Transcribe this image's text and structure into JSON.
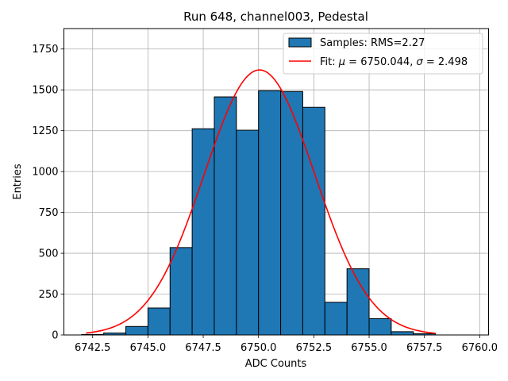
{
  "chart_data": {
    "type": "bar",
    "title": "Run 648, channel003, Pedestal",
    "xlabel": "ADC Counts",
    "ylabel": "Entries",
    "xlim": [
      6741.2,
      6760.4
    ],
    "ylim": [
      0,
      1875
    ],
    "grid": true,
    "legend_position": "top-right",
    "xticks": [
      6742.5,
      6745.0,
      6747.5,
      6750.0,
      6752.5,
      6755.0,
      6757.5,
      6760.0
    ],
    "xtick_labels": [
      "6742.5",
      "6745.0",
      "6747.5",
      "6750.0",
      "6752.5",
      "6755.0",
      "6757.5",
      "6760.0"
    ],
    "yticks": [
      0,
      250,
      500,
      750,
      1000,
      1250,
      1500,
      1750
    ],
    "ytick_labels": [
      "0",
      "250",
      "500",
      "750",
      "1000",
      "1250",
      "1500",
      "1750"
    ],
    "histogram": {
      "name": "Samples: RMS=2.27",
      "color": "#1f77b4",
      "edge_color": "#000000",
      "bin_edges": [
        6742.0,
        6743.0,
        6744.0,
        6745.0,
        6746.0,
        6747.0,
        6748.0,
        6749.0,
        6750.0,
        6751.0,
        6752.0,
        6753.0,
        6754.0,
        6755.0,
        6756.0,
        6757.0,
        6758.0
      ],
      "counts": [
        3,
        12,
        52,
        165,
        535,
        1262,
        1457,
        1253,
        1495,
        1490,
        1393,
        200,
        405,
        100,
        20,
        8
      ]
    },
    "fit": {
      "name": "Fit: μ = 6750.044, σ = 2.498",
      "legend_mu_symbol": "μ",
      "legend_sigma_symbol": "σ",
      "legend_prefix": "Fit: ",
      "legend_mu_value": " = 6750.044, ",
      "legend_sigma_value": " = 2.498",
      "color": "#ff0000",
      "mu": 6750.044,
      "sigma": 2.498,
      "amplitude": 1622,
      "x_range": [
        6742.2,
        6758.0
      ]
    }
  }
}
